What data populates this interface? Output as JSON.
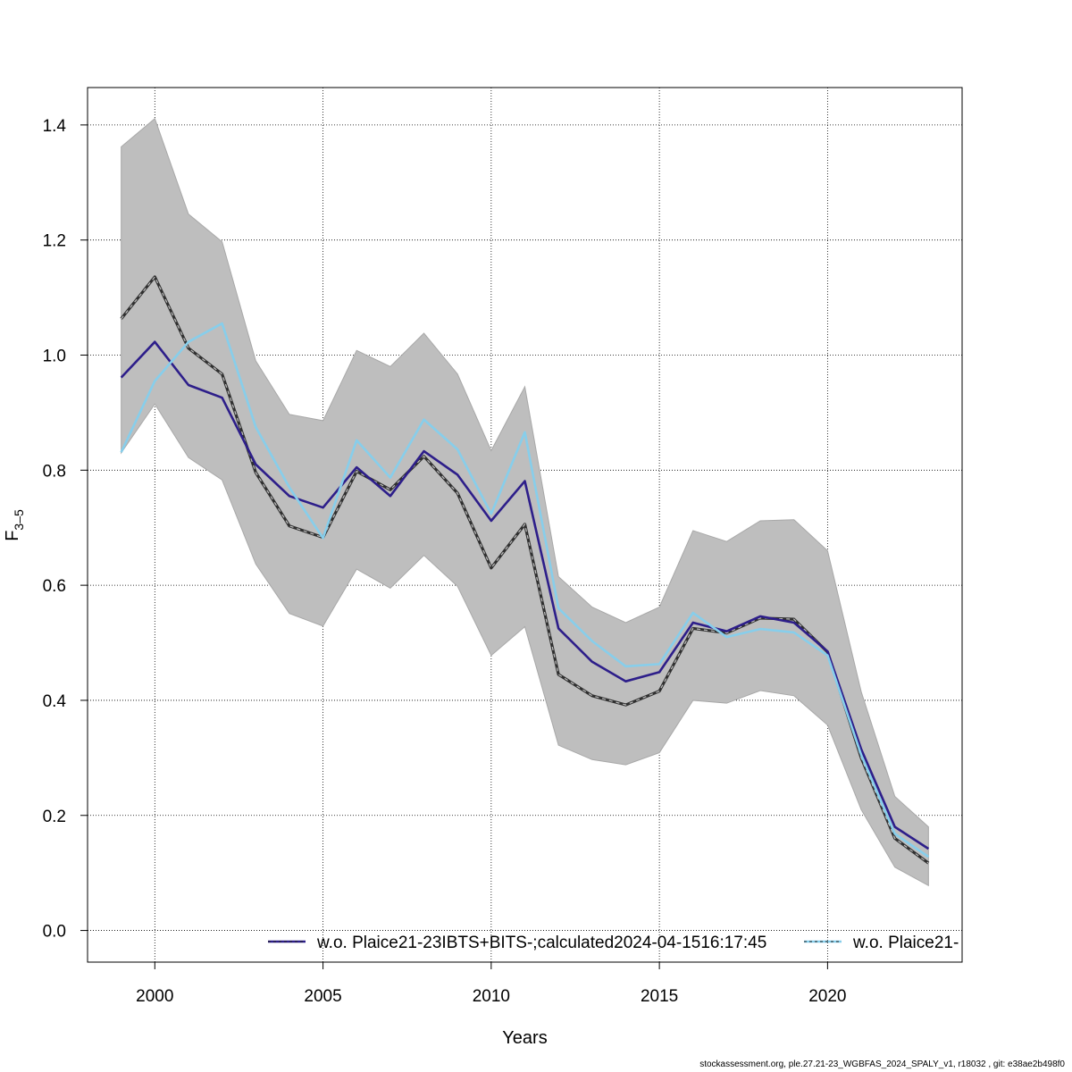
{
  "chart_data": {
    "type": "line",
    "xlabel": "Years",
    "ylabel": "F",
    "ylabel_subscript": "3–5",
    "xlim": [
      1998,
      2024
    ],
    "ylim": [
      -0.055,
      1.465
    ],
    "xticks": [
      2000,
      2005,
      2010,
      2015,
      2020
    ],
    "yticks": [
      0.0,
      0.2,
      0.4,
      0.6,
      0.8,
      1.0,
      1.2,
      1.4
    ],
    "ytick_labels": [
      "0.0",
      "0.2",
      "0.4",
      "0.6",
      "0.8",
      "1.0",
      "1.2",
      "1.4"
    ],
    "grid": true,
    "legend_position": "bottom",
    "x": [
      1999,
      2000,
      2001,
      2002,
      2003,
      2004,
      2005,
      2006,
      2007,
      2008,
      2009,
      2010,
      2011,
      2012,
      2013,
      2014,
      2015,
      2016,
      2017,
      2018,
      2019,
      2020,
      2021,
      2022,
      2023
    ],
    "band": {
      "lower": [
        0.83,
        0.915,
        0.822,
        0.783,
        0.637,
        0.551,
        0.529,
        0.628,
        0.595,
        0.652,
        0.598,
        0.478,
        0.528,
        0.322,
        0.297,
        0.288,
        0.309,
        0.4,
        0.395,
        0.417,
        0.408,
        0.357,
        0.21,
        0.11,
        0.078
      ],
      "upper": [
        1.362,
        1.411,
        1.245,
        1.197,
        0.99,
        0.897,
        0.886,
        1.008,
        0.98,
        1.038,
        0.967,
        0.834,
        0.945,
        0.615,
        0.562,
        0.535,
        0.562,
        0.695,
        0.676,
        0.712,
        0.714,
        0.66,
        0.415,
        0.233,
        0.18
      ],
      "color": "#bebebe"
    },
    "series": [
      {
        "name": "",
        "color": "#303030",
        "style": "dashed-black",
        "values": [
          1.063,
          1.136,
          1.012,
          0.967,
          0.796,
          0.703,
          0.683,
          0.798,
          0.766,
          0.824,
          0.76,
          0.63,
          0.706,
          0.445,
          0.408,
          0.392,
          0.416,
          0.525,
          0.517,
          0.543,
          0.541,
          0.484,
          0.3,
          0.16,
          0.117
        ]
      },
      {
        "name": "w.o. Plaice21-23IBTS+BITS-;calculated2024-04-1516:17:45",
        "color": "#2d1e8a",
        "style": "solid",
        "values": [
          0.961,
          1.023,
          0.948,
          0.926,
          0.81,
          0.755,
          0.735,
          0.805,
          0.755,
          0.833,
          0.792,
          0.712,
          0.781,
          0.525,
          0.467,
          0.433,
          0.449,
          0.535,
          0.52,
          0.546,
          0.535,
          0.485,
          0.315,
          0.18,
          0.142
        ]
      },
      {
        "name": "w.o. Plaice21-",
        "color": "#87ceeb",
        "style": "solid",
        "values": [
          0.831,
          0.955,
          1.023,
          1.055,
          0.875,
          0.77,
          0.682,
          0.852,
          0.787,
          0.888,
          0.836,
          0.724,
          0.866,
          0.56,
          0.503,
          0.459,
          0.463,
          0.552,
          0.51,
          0.524,
          0.518,
          0.478,
          0.305,
          0.168,
          0.128
        ]
      }
    ]
  },
  "footer": "stockassessment.org, ple.27.21-23_WGBFAS_2024_SPALY_v1, r18032 , git: e38ae2b498f0"
}
